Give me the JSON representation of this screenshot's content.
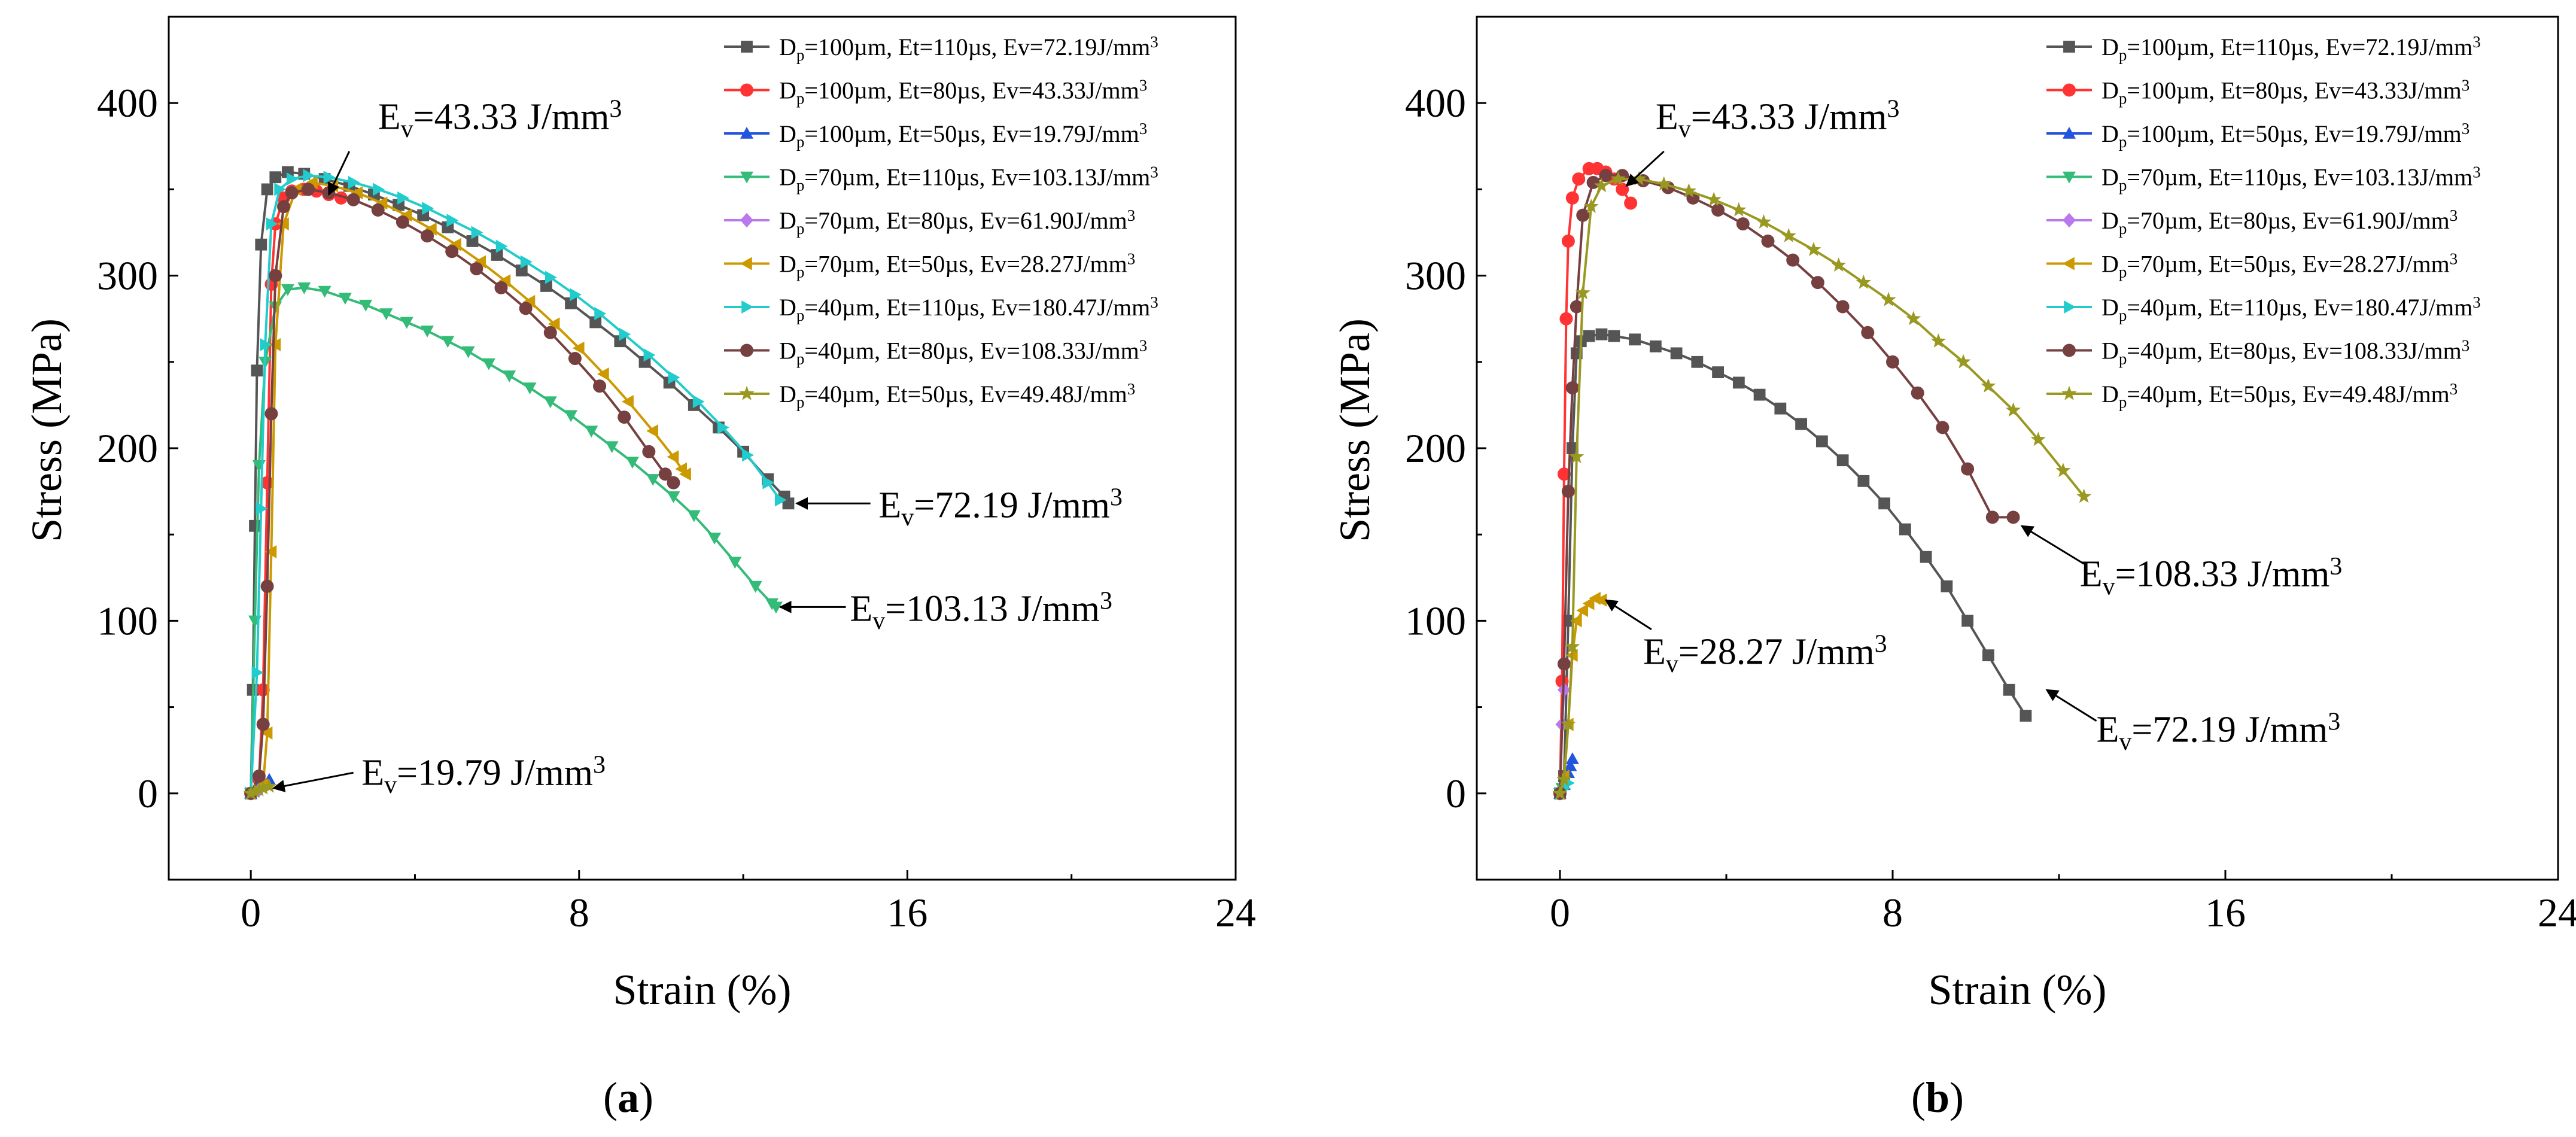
{
  "figure": {
    "panel_labels": [
      "(a)",
      "(b)"
    ]
  },
  "chart_data": [
    {
      "type": "line",
      "panel_label": "(a)",
      "xlabel": "Strain (%)",
      "ylabel": "Stress (MPa)",
      "xlim": [
        -2,
        24
      ],
      "ylim": [
        -50,
        450
      ],
      "xticks": [
        0,
        8,
        16,
        24
      ],
      "yticks": [
        0,
        100,
        200,
        300,
        400
      ],
      "legend_position": "top-right",
      "series": [
        {
          "name": "Dp=100µm, Et=110µs, Ev=72.19J/mm3",
          "sub": "p",
          "sup": "3",
          "legend_parts": [
            "D",
            "p",
            "=100µm, Et=110µs, Ev=72.19J/mm",
            "3"
          ],
          "color": "#555555",
          "marker": "square",
          "x": [
            0,
            0.05,
            0.1,
            0.15,
            0.25,
            0.4,
            0.6,
            0.9,
            1.3,
            1.8,
            2.4,
            3.0,
            3.6,
            4.2,
            4.8,
            5.4,
            6.0,
            6.6,
            7.2,
            7.8,
            8.4,
            9.0,
            9.6,
            10.2,
            10.8,
            11.4,
            12.0,
            12.6,
            13.0,
            13.1
          ],
          "y": [
            0,
            60,
            155,
            245,
            318,
            350,
            357,
            360,
            359,
            356,
            352,
            347,
            341,
            335,
            328,
            320,
            312,
            303,
            294,
            284,
            273,
            262,
            250,
            238,
            225,
            212,
            198,
            182,
            172,
            168
          ]
        },
        {
          "name": "Dp=100µm, Et=80µs, Ev=43.33J/mm3",
          "sub": "p",
          "sup": "3",
          "legend_parts": [
            "D",
            "p",
            "=100µm, Et=80µs, Ev=43.33J/mm",
            "3"
          ],
          "color": "#ff3333",
          "marker": "circle",
          "x": [
            0,
            0.2,
            0.3,
            0.4,
            0.5,
            0.6,
            0.8,
            1.0,
            1.3,
            1.6,
            1.9,
            2.2
          ],
          "y": [
            0,
            8,
            60,
            180,
            295,
            330,
            345,
            349,
            350,
            349,
            347,
            345
          ]
        },
        {
          "name": "Dp=100µm, Et=50µs, Ev=19.79J/mm3",
          "sub": "p",
          "sup": "3",
          "legend_parts": [
            "D",
            "p",
            "=100µm, Et=50µs, Ev=19.79J/mm",
            "3"
          ],
          "color": "#2255dd",
          "marker": "triangle-up",
          "x": [
            0,
            0.1,
            0.2,
            0.3,
            0.45
          ],
          "y": [
            0,
            2,
            4,
            6,
            8
          ]
        },
        {
          "name": "Dp=70µm, Et=110µs, Ev=103.13J/mm3",
          "sub": "p",
          "sup": "3",
          "legend_parts": [
            "D",
            "p",
            "=70µm, Et=110µs, Ev=103.13J/mm",
            "3"
          ],
          "color": "#33bb77",
          "marker": "triangle-down",
          "x": [
            0,
            0.1,
            0.2,
            0.35,
            0.6,
            0.9,
            1.3,
            1.8,
            2.3,
            2.8,
            3.3,
            3.8,
            4.3,
            4.8,
            5.3,
            5.8,
            6.3,
            6.8,
            7.3,
            7.8,
            8.3,
            8.8,
            9.3,
            9.8,
            10.3,
            10.8,
            11.3,
            11.8,
            12.3,
            12.7,
            12.8
          ],
          "y": [
            0,
            100,
            190,
            250,
            282,
            292,
            293,
            291,
            287,
            283,
            278,
            273,
            268,
            262,
            256,
            249,
            242,
            235,
            227,
            219,
            210,
            201,
            192,
            182,
            172,
            161,
            148,
            134,
            120,
            110,
            108
          ]
        },
        {
          "name": "Dp=70µm, Et=80µs, Ev=61.90J/mm3",
          "sub": "p",
          "sup": "3",
          "legend_parts": [
            "D",
            "p",
            "=70µm, Et=80µs, Ev=61.90J/mm",
            "3"
          ],
          "color": "#bb77ee",
          "marker": "diamond",
          "x": [
            0,
            0.1,
            0.2
          ],
          "y": [
            0,
            1,
            2
          ]
        },
        {
          "name": "Dp=70µm, Et=50µs, Ev=28.27J/mm3",
          "sub": "p",
          "sup": "3",
          "legend_parts": [
            "D",
            "p",
            "=70µm, Et=50µs, Ev=28.27J/mm",
            "3"
          ],
          "color": "#cc9900",
          "marker": "triangle-left",
          "x": [
            0,
            0.3,
            0.4,
            0.5,
            0.6,
            0.8,
            1.1,
            1.5,
            2.0,
            2.6,
            3.2,
            3.8,
            4.4,
            5.0,
            5.6,
            6.2,
            6.8,
            7.4,
            8.0,
            8.6,
            9.2,
            9.8,
            10.3,
            10.5,
            10.6
          ],
          "y": [
            0,
            5,
            35,
            140,
            260,
            330,
            350,
            354,
            352,
            348,
            342,
            335,
            327,
            318,
            308,
            297,
            285,
            272,
            258,
            243,
            227,
            210,
            195,
            188,
            185
          ]
        },
        {
          "name": "Dp=40µm, Et=110µs, Ev=180.47J/mm3",
          "sub": "p",
          "sup": "3",
          "legend_parts": [
            "D",
            "p",
            "=40µm, Et=110µs, Ev=180.47J/mm",
            "3"
          ],
          "color": "#22cccc",
          "marker": "triangle-right",
          "x": [
            0,
            0.15,
            0.25,
            0.35,
            0.5,
            0.7,
            1.0,
            1.4,
            1.9,
            2.5,
            3.1,
            3.7,
            4.3,
            4.9,
            5.5,
            6.1,
            6.7,
            7.3,
            7.9,
            8.5,
            9.1,
            9.7,
            10.3,
            10.9,
            11.5,
            12.1,
            12.6,
            12.9
          ],
          "y": [
            0,
            70,
            165,
            260,
            330,
            350,
            356,
            358,
            357,
            354,
            350,
            345,
            339,
            332,
            325,
            317,
            308,
            299,
            289,
            278,
            266,
            254,
            241,
            227,
            212,
            196,
            180,
            170
          ]
        },
        {
          "name": "Dp=40µm, Et=80µs, Ev=108.33J/mm3",
          "sub": "p",
          "sup": "3",
          "legend_parts": [
            "D",
            "p",
            "=40µm, Et=80µs, Ev=108.33J/mm",
            "3"
          ],
          "color": "#774040",
          "marker": "circle",
          "x": [
            0,
            0.2,
            0.3,
            0.4,
            0.5,
            0.6,
            0.8,
            1.0,
            1.4,
            1.9,
            2.5,
            3.1,
            3.7,
            4.3,
            4.9,
            5.5,
            6.1,
            6.7,
            7.3,
            7.9,
            8.5,
            9.1,
            9.7,
            10.1,
            10.3
          ],
          "y": [
            0,
            10,
            40,
            120,
            220,
            300,
            340,
            348,
            350,
            348,
            344,
            338,
            331,
            323,
            314,
            304,
            293,
            281,
            267,
            252,
            236,
            218,
            198,
            185,
            180
          ]
        },
        {
          "name": "Dp=40µm, Et=50µs, Ev=49.48J/mm3",
          "sub": "p",
          "sup": "3",
          "legend_parts": [
            "D",
            "p",
            "=40µm, Et=50µs, Ev=49.48J/mm",
            "3"
          ],
          "color": "#999922",
          "marker": "star",
          "x": [
            0,
            0.1,
            0.2,
            0.3,
            0.45
          ],
          "y": [
            0,
            1,
            2,
            3,
            4
          ]
        }
      ],
      "annotations": [
        {
          "parts": [
            "E",
            "v",
            "=43.33 J/mm",
            "3"
          ],
          "text_at": [
            3.1,
            385
          ],
          "arrow_from": [
            2.4,
            372
          ],
          "arrow_to": [
            1.9,
            347
          ]
        },
        {
          "parts": [
            "E",
            "v",
            "=72.19 J/mm",
            "3"
          ],
          "text_at": [
            15.3,
            160
          ],
          "arrow_from": [
            15.1,
            168
          ],
          "arrow_to": [
            13.3,
            168
          ]
        },
        {
          "parts": [
            "E",
            "v",
            "=103.13 J/mm",
            "3"
          ],
          "text_at": [
            14.6,
            100
          ],
          "arrow_from": [
            14.5,
            108
          ],
          "arrow_to": [
            12.9,
            108
          ]
        },
        {
          "parts": [
            "E",
            "v",
            "=19.79 J/mm",
            "3"
          ],
          "text_at": [
            2.7,
            5
          ],
          "arrow_from": [
            2.5,
            12
          ],
          "arrow_to": [
            0.55,
            3
          ]
        }
      ]
    },
    {
      "type": "line",
      "panel_label": "(b)",
      "xlabel": "Strain (%)",
      "ylabel": "Stress (MPa)",
      "xlim": [
        -2,
        24
      ],
      "ylim": [
        -50,
        450
      ],
      "xticks": [
        0,
        8,
        16,
        24
      ],
      "yticks": [
        0,
        100,
        200,
        300,
        400
      ],
      "legend_position": "top-right",
      "series": [
        {
          "name": "Dp=100µm, Et=110µs, Ev=72.19J/mm3",
          "legend_parts": [
            "D",
            "p",
            "=100µm, Et=110µs, Ev=72.19J/mm",
            "3"
          ],
          "color": "#555555",
          "marker": "square",
          "x": [
            0,
            0.1,
            0.2,
            0.3,
            0.4,
            0.5,
            0.7,
            1.0,
            1.3,
            1.8,
            2.3,
            2.8,
            3.3,
            3.8,
            4.3,
            4.8,
            5.3,
            5.8,
            6.3,
            6.8,
            7.3,
            7.8,
            8.3,
            8.8,
            9.3,
            9.8,
            10.3,
            10.8,
            11.2
          ],
          "y": [
            0,
            10,
            100,
            200,
            255,
            262,
            265,
            266,
            265,
            263,
            259,
            255,
            250,
            244,
            238,
            231,
            223,
            214,
            204,
            193,
            181,
            168,
            153,
            137,
            120,
            100,
            80,
            60,
            45
          ]
        },
        {
          "name": "Dp=100µm, Et=80µs, Ev=43.33J/mm3",
          "legend_parts": [
            "D",
            "p",
            "=100µm, Et=80µs, Ev=43.33J/mm",
            "3"
          ],
          "color": "#ff3333",
          "marker": "circle",
          "x": [
            0,
            0.05,
            0.1,
            0.15,
            0.2,
            0.3,
            0.45,
            0.7,
            0.9,
            1.1,
            1.3,
            1.5,
            1.7
          ],
          "y": [
            0,
            65,
            185,
            275,
            320,
            345,
            356,
            362,
            362,
            360,
            356,
            350,
            342
          ]
        },
        {
          "name": "Dp=100µm, Et=50µs, Ev=19.79J/mm3",
          "legend_parts": [
            "D",
            "p",
            "=100µm, Et=50µs, Ev=19.79J/mm",
            "3"
          ],
          "color": "#2255dd",
          "marker": "triangle-up",
          "x": [
            0,
            0.1,
            0.2,
            0.25,
            0.3
          ],
          "y": [
            0,
            5,
            12,
            16,
            20
          ]
        },
        {
          "name": "Dp=70µm, Et=110µs, Ev=103.13J/mm3",
          "legend_parts": [
            "D",
            "p",
            "=70µm, Et=110µs, Ev=103.13J/mm",
            "3"
          ],
          "color": "#33bb77",
          "marker": "triangle-down",
          "x": [
            0,
            0.05,
            0.1
          ],
          "y": [
            0,
            3,
            6
          ]
        },
        {
          "name": "Dp=70µm, Et=80µs, Ev=61.90J/mm3",
          "legend_parts": [
            "D",
            "p",
            "=70µm, Et=80µs, Ev=61.90J/mm",
            "3"
          ],
          "color": "#bb77ee",
          "marker": "diamond",
          "x": [
            0,
            0.05,
            0.1
          ],
          "y": [
            0,
            40,
            60
          ]
        },
        {
          "name": "Dp=70µm, Et=50µs, Ev=28.27J/mm3",
          "legend_parts": [
            "D",
            "p",
            "=70µm, Et=50µs, Ev=28.27J/mm",
            "3"
          ],
          "color": "#cc9900",
          "marker": "triangle-left",
          "x": [
            0,
            0.1,
            0.2,
            0.3,
            0.4,
            0.55,
            0.7,
            0.85,
            1.0
          ],
          "y": [
            0,
            10,
            40,
            80,
            100,
            106,
            110,
            113,
            112
          ]
        },
        {
          "name": "Dp=40µm, Et=110µs, Ev=180.47J/mm3",
          "legend_parts": [
            "D",
            "p",
            "=40µm, Et=110µs, Ev=180.47J/mm",
            "3"
          ],
          "color": "#22cccc",
          "marker": "triangle-right",
          "x": [
            0,
            0.1,
            0.2
          ],
          "y": [
            0,
            3,
            6
          ]
        },
        {
          "name": "Dp=40µm, Et=80µs, Ev=108.33J/mm3",
          "legend_parts": [
            "D",
            "p",
            "=40µm, Et=80µs, Ev=108.33J/mm",
            "3"
          ],
          "color": "#774040",
          "marker": "circle",
          "x": [
            0,
            0.1,
            0.2,
            0.3,
            0.4,
            0.55,
            0.8,
            1.1,
            1.5,
            2.0,
            2.6,
            3.2,
            3.8,
            4.4,
            5.0,
            5.6,
            6.2,
            6.8,
            7.4,
            8.0,
            8.6,
            9.2,
            9.8,
            10.4,
            10.9
          ],
          "y": [
            0,
            75,
            175,
            235,
            282,
            335,
            354,
            358,
            358,
            355,
            351,
            345,
            338,
            330,
            320,
            309,
            296,
            282,
            267,
            250,
            232,
            212,
            188,
            160,
            160
          ]
        },
        {
          "name": "Dp=40µm, Et=50µs, Ev=49.48J/mm3",
          "legend_parts": [
            "D",
            "p",
            "=40µm, Et=50µs, Ev=49.48J/mm",
            "3"
          ],
          "color": "#999922",
          "marker": "star",
          "x": [
            0,
            0.1,
            0.2,
            0.3,
            0.4,
            0.55,
            0.75,
            1.0,
            1.4,
            1.9,
            2.5,
            3.1,
            3.7,
            4.3,
            4.9,
            5.5,
            6.1,
            6.7,
            7.3,
            7.9,
            8.5,
            9.1,
            9.7,
            10.3,
            10.9,
            11.5,
            12.1,
            12.6
          ],
          "y": [
            0,
            8,
            40,
            85,
            195,
            290,
            340,
            352,
            356,
            356,
            353,
            349,
            344,
            338,
            331,
            323,
            315,
            306,
            296,
            286,
            275,
            262,
            250,
            236,
            222,
            205,
            187,
            172
          ]
        }
      ],
      "annotations": [
        {
          "parts": [
            "E",
            "v",
            "=43.33 J/mm",
            "3"
          ],
          "text_at": [
            2.3,
            385
          ],
          "arrow_from": [
            2.5,
            372
          ],
          "arrow_to": [
            1.6,
            352
          ]
        },
        {
          "parts": [
            "E",
            "v",
            "=108.33 J/mm",
            "3"
          ],
          "text_at": [
            12.5,
            120
          ],
          "arrow_from": [
            12.6,
            133
          ],
          "arrow_to": [
            11.1,
            155
          ]
        },
        {
          "parts": [
            "E",
            "v",
            "=28.27 J/mm",
            "3"
          ],
          "text_at": [
            2.0,
            75
          ],
          "arrow_from": [
            2.2,
            95
          ],
          "arrow_to": [
            1.1,
            112
          ]
        },
        {
          "parts": [
            "E",
            "v",
            "=72.19 J/mm",
            "3"
          ],
          "text_at": [
            12.9,
            30
          ],
          "arrow_from": [
            12.9,
            42
          ],
          "arrow_to": [
            11.7,
            60
          ]
        }
      ]
    }
  ]
}
